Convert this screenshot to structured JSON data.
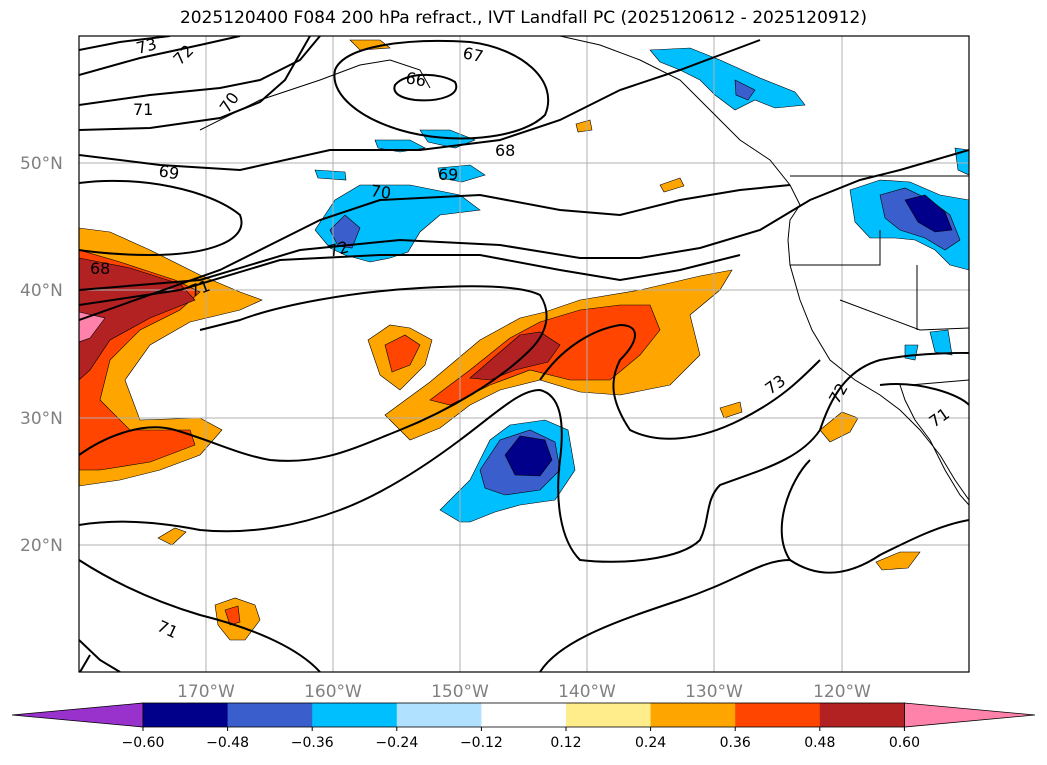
{
  "title": "2025120400 F084 200 hPa refract., IVT Landfall PC (2025120612 - 2025120912)",
  "lat_labels": [
    "50°N",
    "40°N",
    "30°N",
    "20°N"
  ],
  "lon_labels": [
    "170°W",
    "160°W",
    "150°W",
    "140°W",
    "130°W",
    "120°W"
  ],
  "contour_labels": [
    "73",
    "72",
    "71",
    "70",
    "69",
    "68",
    "67",
    "66",
    "70",
    "72",
    "68",
    "71",
    "69",
    "73",
    "72",
    "71",
    "71"
  ],
  "colorbar": {
    "tick_labels": [
      "−0.60",
      "−0.48",
      "−0.36",
      "−0.24",
      "−0.12",
      "0.12",
      "0.24",
      "0.36",
      "0.48",
      "0.60"
    ],
    "colors": [
      "#9932cc",
      "#00008b",
      "#3a5fcd",
      "#00bfff",
      "#b0e2ff",
      "#ffffff",
      "#ffec8b",
      "#ffa500",
      "#ff4500",
      "#b22222",
      "#ff82ab"
    ]
  },
  "colors": {
    "neg_darkest": "#00008b",
    "neg_dark": "#3a5fcd",
    "neg_mid": "#00bfff",
    "pos_light": "#ffec8b",
    "pos_mid": "#ffa500",
    "pos_strong": "#ff4500",
    "pos_darker": "#b22222",
    "pos_max": "#ff82ab",
    "grid": "#b0b0b0",
    "axis_label": "#808080"
  }
}
